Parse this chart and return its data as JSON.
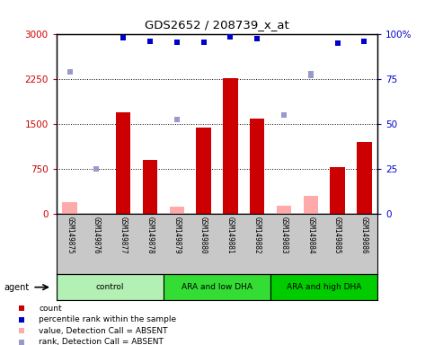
{
  "title": "GDS2652 / 208739_x_at",
  "samples": [
    "GSM149875",
    "GSM149876",
    "GSM149877",
    "GSM149878",
    "GSM149879",
    "GSM149880",
    "GSM149881",
    "GSM149882",
    "GSM149883",
    "GSM149884",
    "GSM149885",
    "GSM149886"
  ],
  "groups": [
    {
      "label": "control",
      "start": 0,
      "end": 3,
      "color": "#b3f0b3"
    },
    {
      "label": "ARA and low DHA",
      "start": 4,
      "end": 7,
      "color": "#33dd33"
    },
    {
      "label": "ARA and high DHA",
      "start": 8,
      "end": 11,
      "color": "#00cc00"
    }
  ],
  "counts": [
    null,
    null,
    1700,
    900,
    null,
    1450,
    2270,
    1600,
    null,
    null,
    780,
    1200
  ],
  "counts_absent": [
    200,
    null,
    null,
    null,
    120,
    null,
    null,
    null,
    140,
    300,
    null,
    null
  ],
  "percentile_ranks": [
    null,
    null,
    98.3,
    96.0,
    95.7,
    95.7,
    98.7,
    97.7,
    null,
    null,
    95.0,
    96.3
  ],
  "percentile_ranks_absent": [
    79.3,
    25.3,
    null,
    null,
    null,
    null,
    null,
    null,
    null,
    78.0,
    null,
    null
  ],
  "rank_absent": [
    null,
    null,
    null,
    null,
    52.7,
    null,
    null,
    null,
    55.3,
    77.3,
    null,
    null
  ],
  "ylim_left": [
    0,
    3000
  ],
  "ylim_right": [
    0,
    100
  ],
  "yticks_left": [
    0,
    750,
    1500,
    2250,
    3000
  ],
  "yticks_right": [
    0,
    25,
    50,
    75,
    100
  ],
  "bar_color": "#cc0000",
  "absent_bar_color": "#ffaaaa",
  "rank_color": "#0000cc",
  "rank_absent_color": "#9999cc",
  "bg_color": "#c8c8c8",
  "left_label_color": "#cc0000",
  "right_label_color": "#0000cc"
}
